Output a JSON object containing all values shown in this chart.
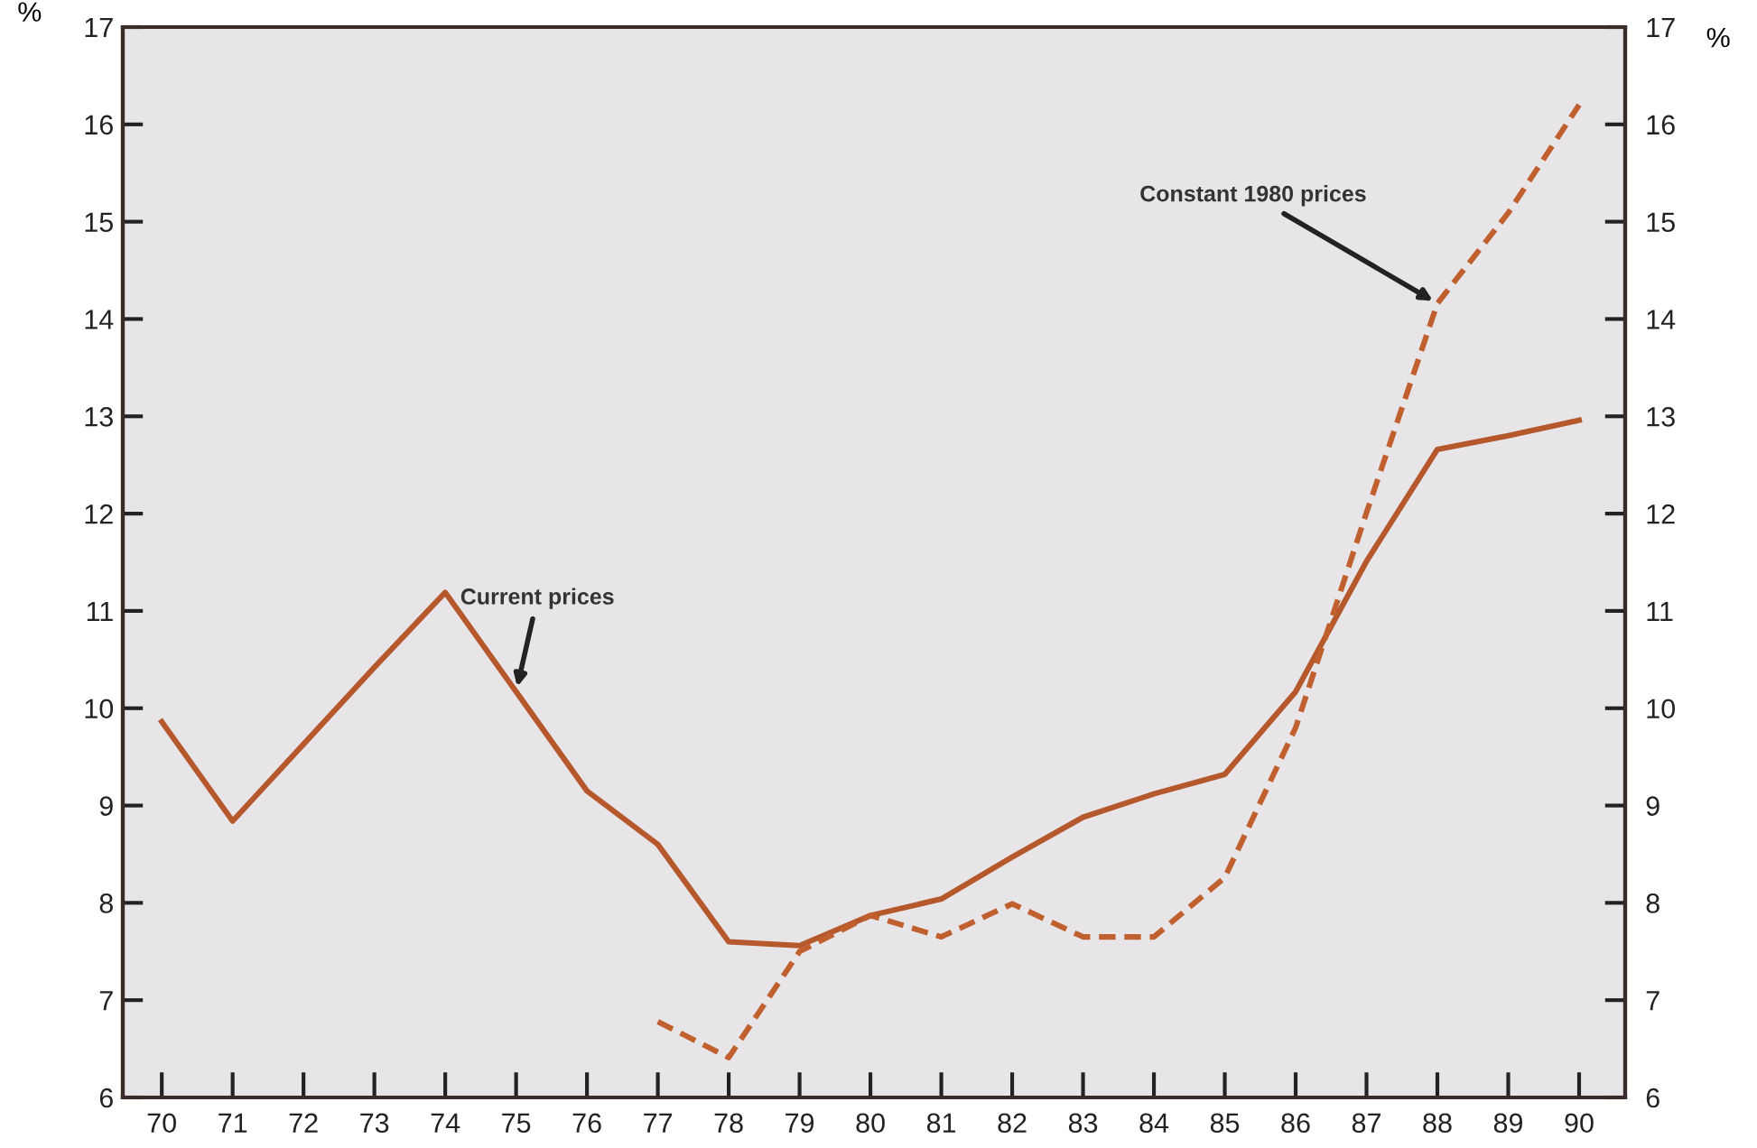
{
  "chart_data": {
    "type": "line",
    "x": [
      70,
      71,
      72,
      73,
      74,
      75,
      76,
      77,
      78,
      79,
      80,
      81,
      82,
      83,
      84,
      85,
      86,
      87,
      88,
      89,
      90
    ],
    "series": [
      {
        "color": "#b5582c",
        "line_style": "solid",
        "values": [
          9.86,
          8.84,
          9.63,
          10.42,
          11.19,
          10.17,
          9.15,
          8.6,
          7.6,
          7.56,
          7.87,
          8.04,
          8.47,
          8.88,
          9.12,
          9.32,
          10.17,
          11.51,
          12.66,
          12.8,
          12.96
        ]
      },
      {
        "color": "#c0602e",
        "line_style": "dashed",
        "values": [
          null,
          null,
          null,
          null,
          null,
          null,
          null,
          6.78,
          6.41,
          7.5,
          7.87,
          7.65,
          7.99,
          7.65,
          7.65,
          8.26,
          9.8,
          12.01,
          14.16,
          15.09,
          16.2
        ]
      }
    ],
    "ylabel": "%",
    "y2label": "%",
    "xlim": [
      69.45,
      90.65
    ],
    "xticks": [
      70,
      71,
      72,
      73,
      74,
      75,
      76,
      77,
      78,
      79,
      80,
      81,
      82,
      83,
      84,
      85,
      86,
      87,
      88,
      89,
      90
    ],
    "ylim": [
      6,
      17
    ],
    "yticks": [
      6,
      7,
      8,
      9,
      10,
      11,
      12,
      13,
      14,
      15,
      16,
      17
    ],
    "y2lim": [
      6,
      17
    ],
    "y2ticks": [
      6,
      7,
      8,
      9,
      10,
      11,
      12,
      13,
      14,
      15,
      16,
      17
    ],
    "annotations": [
      {
        "text": "Current prices",
        "x": 75,
        "y": 10.17
      },
      {
        "text": "Constant 1980 prices",
        "x": 88,
        "y": 14.16
      }
    ],
    "grid": false,
    "legend": false,
    "marker": "none"
  }
}
